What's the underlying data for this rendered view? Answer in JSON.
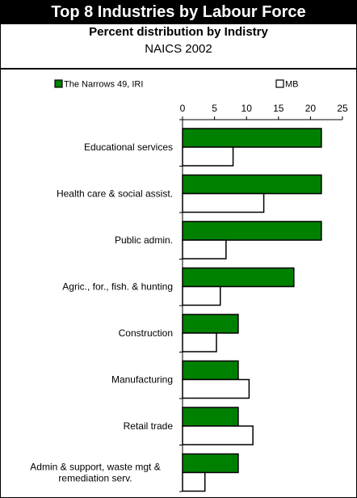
{
  "header": {
    "title": "Top 8 Industries by Labour Force",
    "subtitle": "Percent distribution by Indistry",
    "subtitle2": "NAICS 2002"
  },
  "chart_data": {
    "type": "bar",
    "orientation": "horizontal",
    "categories": [
      "Educational services",
      "Health care & social assist.",
      "Public admin.",
      "Agric., for., fish. & hunting",
      "Construction",
      "Manufacturing",
      "Retail trade",
      "Admin & support, waste mgt & remediation serv."
    ],
    "category_lines": [
      [
        "Educational services"
      ],
      [
        "Health care & social assist."
      ],
      [
        "Public admin."
      ],
      [
        "Agric., for., fish. & hunting"
      ],
      [
        "Construction"
      ],
      [
        "Manufacturing"
      ],
      [
        "Retail trade"
      ],
      [
        "Admin & support, waste mgt &",
        "remediation serv."
      ]
    ],
    "series": [
      {
        "name": "The Narrows 49, IRI",
        "color": "#008000",
        "values": [
          21.7,
          21.7,
          21.7,
          17.4,
          8.7,
          8.7,
          8.7,
          8.7
        ]
      },
      {
        "name": "MB",
        "color": "#ffffff",
        "values": [
          7.9,
          12.7,
          6.8,
          5.9,
          5.3,
          10.4,
          11.0,
          3.5
        ]
      }
    ],
    "xlim": [
      0,
      25
    ],
    "xticks": [
      0,
      5,
      10,
      15,
      20,
      25
    ],
    "grid": false,
    "legend_position": "top"
  }
}
